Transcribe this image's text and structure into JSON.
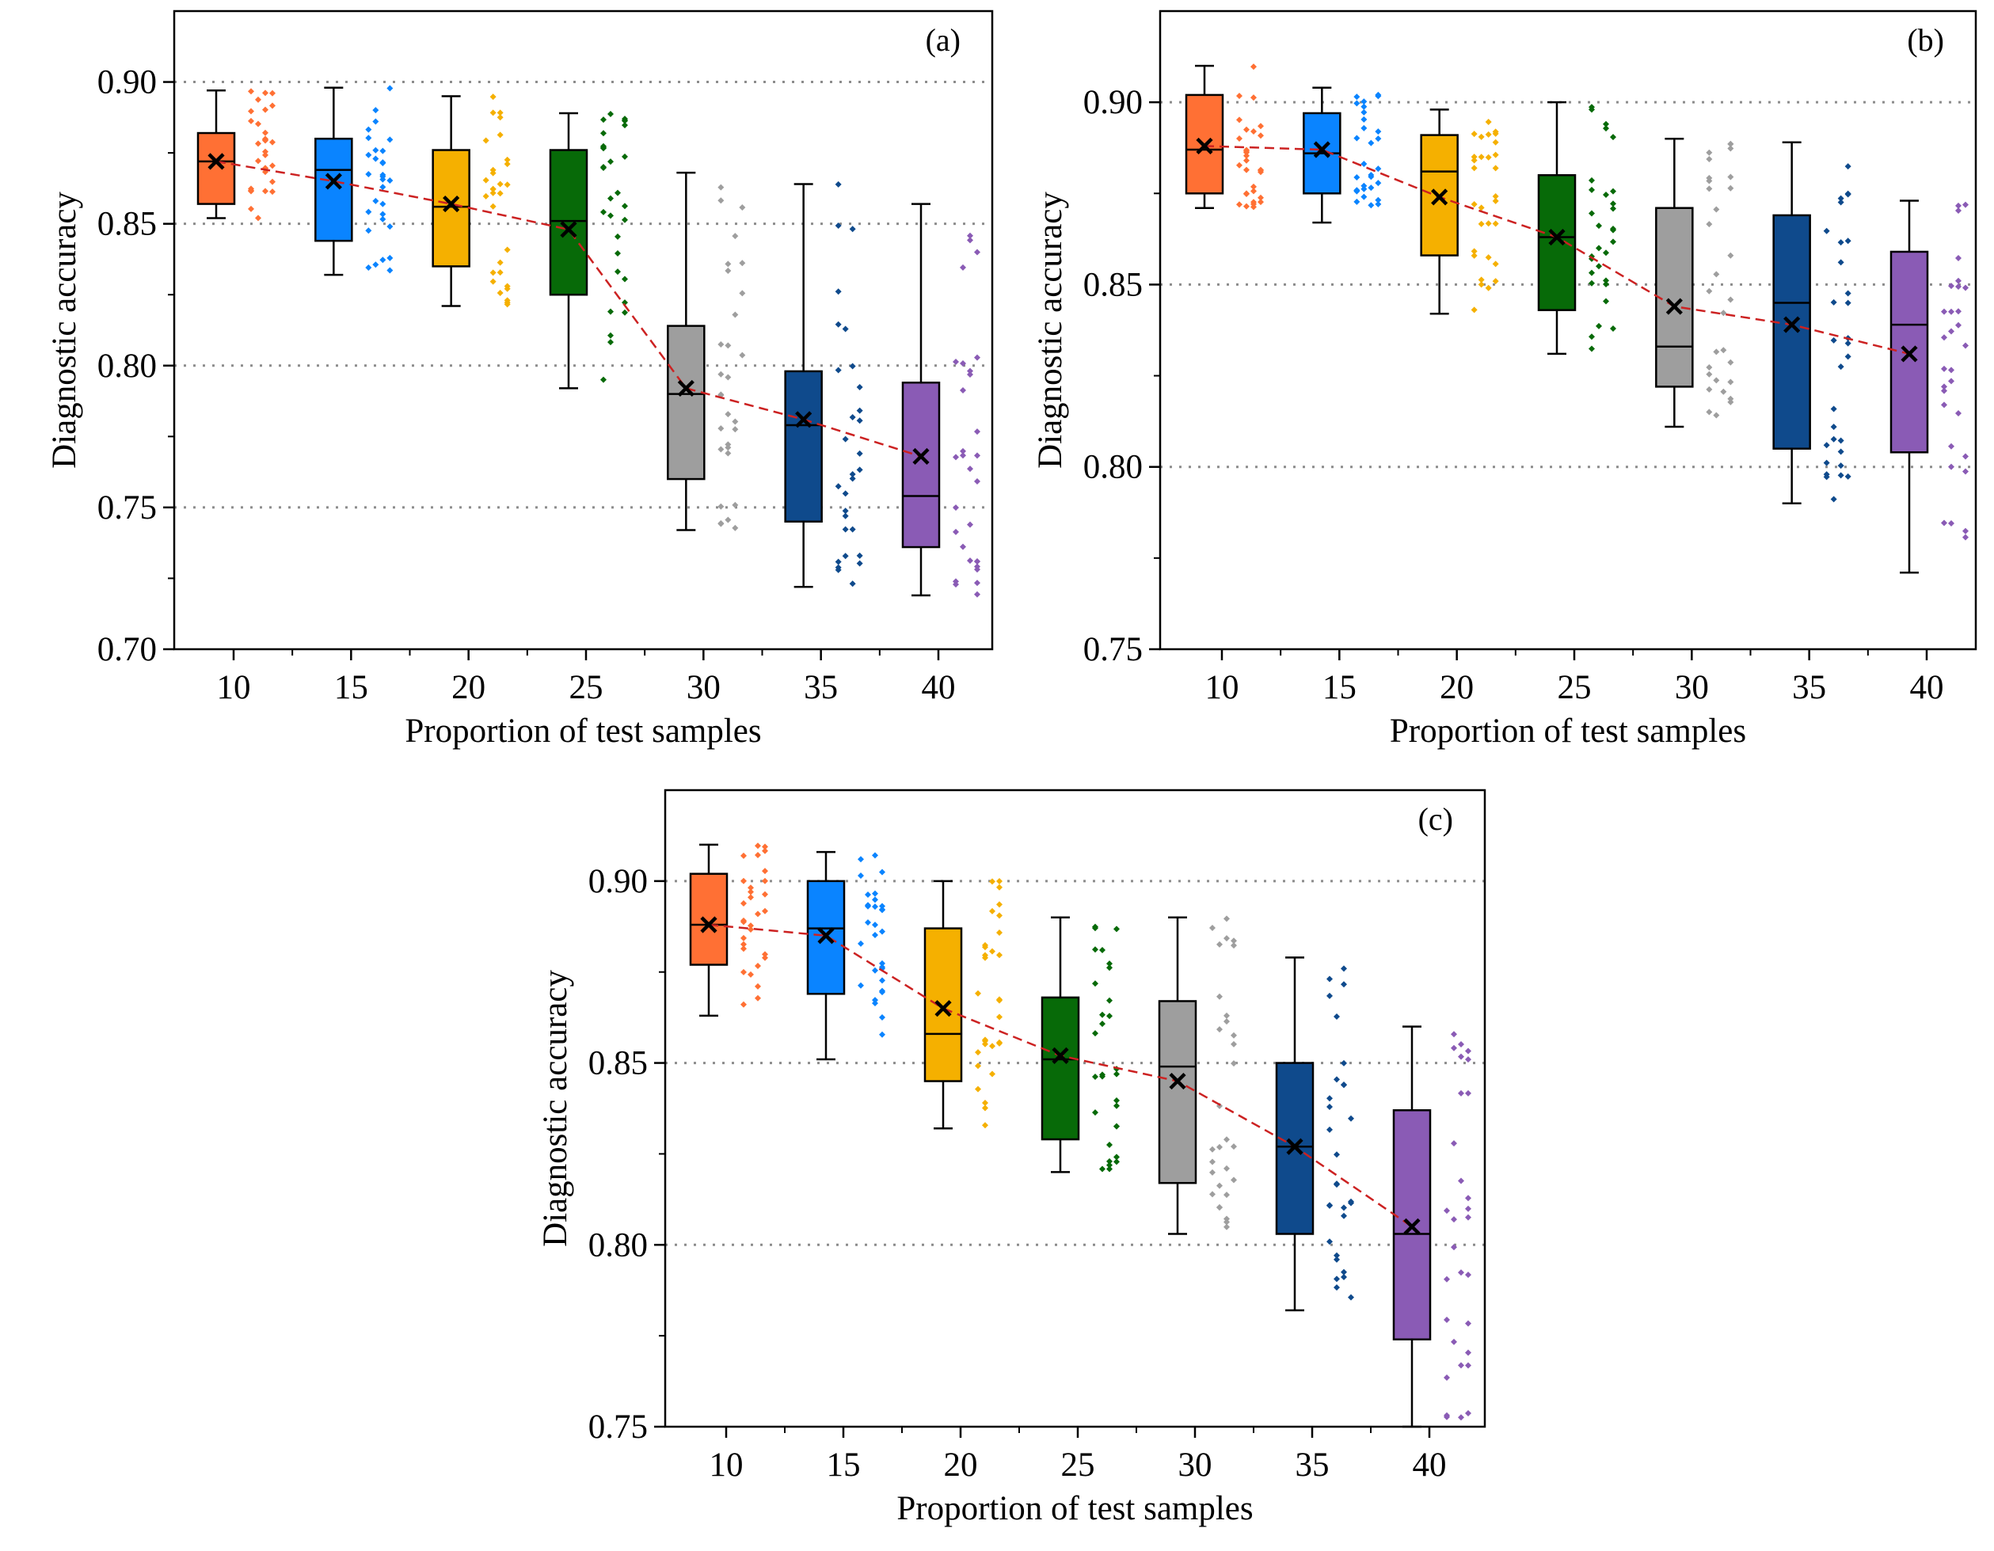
{
  "colors": {
    "10": "#FF7034",
    "15": "#0A84FF",
    "20": "#F5B000",
    "25": "#076A08",
    "30": "#9E9E9E",
    "35": "#0F4A8C",
    "40": "#8A5BB5",
    "mean_line": "#CC2222",
    "grid": "#8C8C8C"
  },
  "chart_data": [
    {
      "type": "box",
      "panel_label": "(a)",
      "xlabel": "Proportion of test samples",
      "ylabel": "Diagnostic accuracy",
      "categories": [
        "10",
        "15",
        "20",
        "25",
        "30",
        "35",
        "40"
      ],
      "ylim": [
        0.7,
        0.925
      ],
      "yticks": [
        0.7,
        0.75,
        0.8,
        0.85,
        0.9
      ],
      "ytick_labels": [
        "0.70",
        "0.75",
        "0.80",
        "0.85",
        "0.90"
      ],
      "grid_y": [
        0.75,
        0.8,
        0.85,
        0.9
      ],
      "boxes": [
        {
          "min": 0.852,
          "q1": 0.857,
          "median": 0.872,
          "q3": 0.882,
          "max": 0.897,
          "mean": 0.872
        },
        {
          "min": 0.832,
          "q1": 0.844,
          "median": 0.869,
          "q3": 0.88,
          "max": 0.898,
          "mean": 0.865
        },
        {
          "min": 0.821,
          "q1": 0.835,
          "median": 0.856,
          "q3": 0.876,
          "max": 0.895,
          "mean": 0.857
        },
        {
          "min": 0.792,
          "q1": 0.825,
          "median": 0.851,
          "q3": 0.876,
          "max": 0.889,
          "mean": 0.848
        },
        {
          "min": 0.742,
          "q1": 0.76,
          "median": 0.79,
          "q3": 0.814,
          "max": 0.868,
          "mean": 0.792
        },
        {
          "min": 0.722,
          "q1": 0.745,
          "median": 0.779,
          "q3": 0.798,
          "max": 0.864,
          "mean": 0.781
        },
        {
          "min": 0.719,
          "q1": 0.736,
          "median": 0.754,
          "q3": 0.794,
          "max": 0.857,
          "mean": 0.768
        }
      ]
    },
    {
      "type": "box",
      "panel_label": "(b)",
      "xlabel": "Proportion of test samples",
      "ylabel": "Diagnostic accuracy",
      "categories": [
        "10",
        "15",
        "20",
        "25",
        "30",
        "35",
        "40"
      ],
      "ylim": [
        0.75,
        0.925
      ],
      "yticks": [
        0.75,
        0.8,
        0.85,
        0.9
      ],
      "ytick_labels": [
        "0.75",
        "0.80",
        "0.85",
        "0.90"
      ],
      "grid_y": [
        0.8,
        0.85,
        0.9
      ],
      "boxes": [
        {
          "min": 0.871,
          "q1": 0.875,
          "median": 0.887,
          "q3": 0.902,
          "max": 0.91,
          "mean": 0.888
        },
        {
          "min": 0.867,
          "q1": 0.875,
          "median": 0.886,
          "q3": 0.897,
          "max": 0.904,
          "mean": 0.887
        },
        {
          "min": 0.842,
          "q1": 0.858,
          "median": 0.881,
          "q3": 0.891,
          "max": 0.898,
          "mean": 0.874
        },
        {
          "min": 0.831,
          "q1": 0.843,
          "median": 0.863,
          "q3": 0.88,
          "max": 0.9,
          "mean": 0.863
        },
        {
          "min": 0.811,
          "q1": 0.822,
          "median": 0.833,
          "q3": 0.871,
          "max": 0.89,
          "mean": 0.844
        },
        {
          "min": 0.79,
          "q1": 0.805,
          "median": 0.845,
          "q3": 0.869,
          "max": 0.889,
          "mean": 0.839
        },
        {
          "min": 0.771,
          "q1": 0.804,
          "median": 0.839,
          "q3": 0.859,
          "max": 0.873,
          "mean": 0.831
        }
      ]
    },
    {
      "type": "box",
      "panel_label": "(c)",
      "xlabel": "Proportion of test samples",
      "ylabel": "Diagnostic accuracy",
      "categories": [
        "10",
        "15",
        "20",
        "25",
        "30",
        "35",
        "40"
      ],
      "ylim": [
        0.75,
        0.925
      ],
      "yticks": [
        0.75,
        0.8,
        0.85,
        0.9
      ],
      "ytick_labels": [
        "0.75",
        "0.80",
        "0.85",
        "0.90"
      ],
      "grid_y": [
        0.8,
        0.85,
        0.9
      ],
      "boxes": [
        {
          "min": 0.863,
          "q1": 0.877,
          "median": 0.888,
          "q3": 0.902,
          "max": 0.91,
          "mean": 0.888
        },
        {
          "min": 0.851,
          "q1": 0.869,
          "median": 0.887,
          "q3": 0.9,
          "max": 0.908,
          "mean": 0.885
        },
        {
          "min": 0.832,
          "q1": 0.845,
          "median": 0.858,
          "q3": 0.887,
          "max": 0.9,
          "mean": 0.865
        },
        {
          "min": 0.82,
          "q1": 0.829,
          "median": 0.851,
          "q3": 0.868,
          "max": 0.89,
          "mean": 0.852
        },
        {
          "min": 0.803,
          "q1": 0.817,
          "median": 0.849,
          "q3": 0.867,
          "max": 0.89,
          "mean": 0.845
        },
        {
          "min": 0.782,
          "q1": 0.803,
          "median": 0.827,
          "q3": 0.85,
          "max": 0.879,
          "mean": 0.827
        },
        {
          "min": 0.75,
          "q1": 0.774,
          "median": 0.803,
          "q3": 0.837,
          "max": 0.86,
          "mean": 0.805
        }
      ]
    }
  ]
}
